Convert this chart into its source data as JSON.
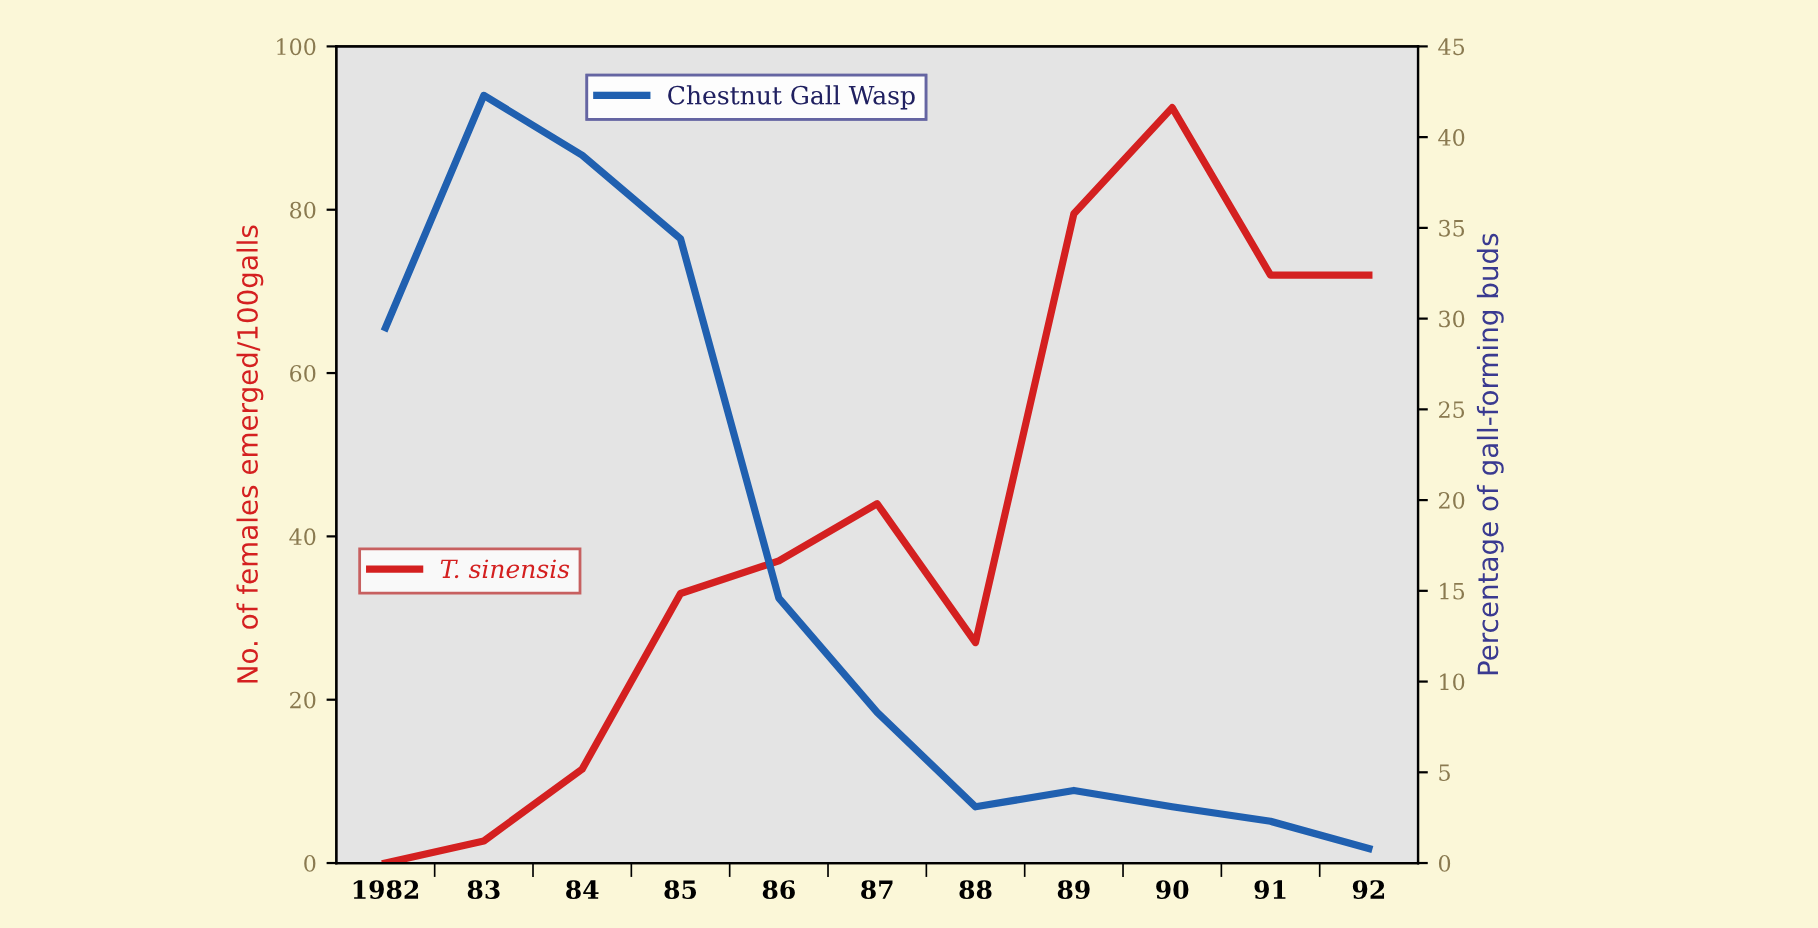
{
  "chart_data": {
    "type": "line",
    "categories": [
      "1982",
      "83",
      "84",
      "85",
      "86",
      "87",
      "88",
      "89",
      "90",
      "91",
      "92"
    ],
    "ylabel": "No. of females emerged/100galls",
    "y2label": "Percentage of gall-forming buds",
    "ylim": [
      0,
      100
    ],
    "yticks": [
      0,
      20,
      40,
      60,
      80,
      100
    ],
    "y2lim": [
      0,
      45
    ],
    "y2ticks": [
      0,
      5,
      10,
      15,
      20,
      25,
      30,
      35,
      40,
      45
    ],
    "legend": "top",
    "grid": false,
    "marker": "none",
    "line_style": "solid",
    "series": [
      {
        "name": "T. sinensis",
        "color": "#d42020",
        "values": [
          0,
          2.7,
          11.5,
          33,
          37,
          44,
          27,
          79.5,
          92.5,
          72,
          72
        ]
      },
      {
        "name": "Chestnut Gall Wasp",
        "color": "#2060b0",
        "axis": "y2",
        "values": [
          29.5,
          42.3,
          39,
          34.4,
          14.6,
          8.3,
          3.1,
          4,
          3.1,
          2.3,
          0.8
        ]
      }
    ]
  }
}
